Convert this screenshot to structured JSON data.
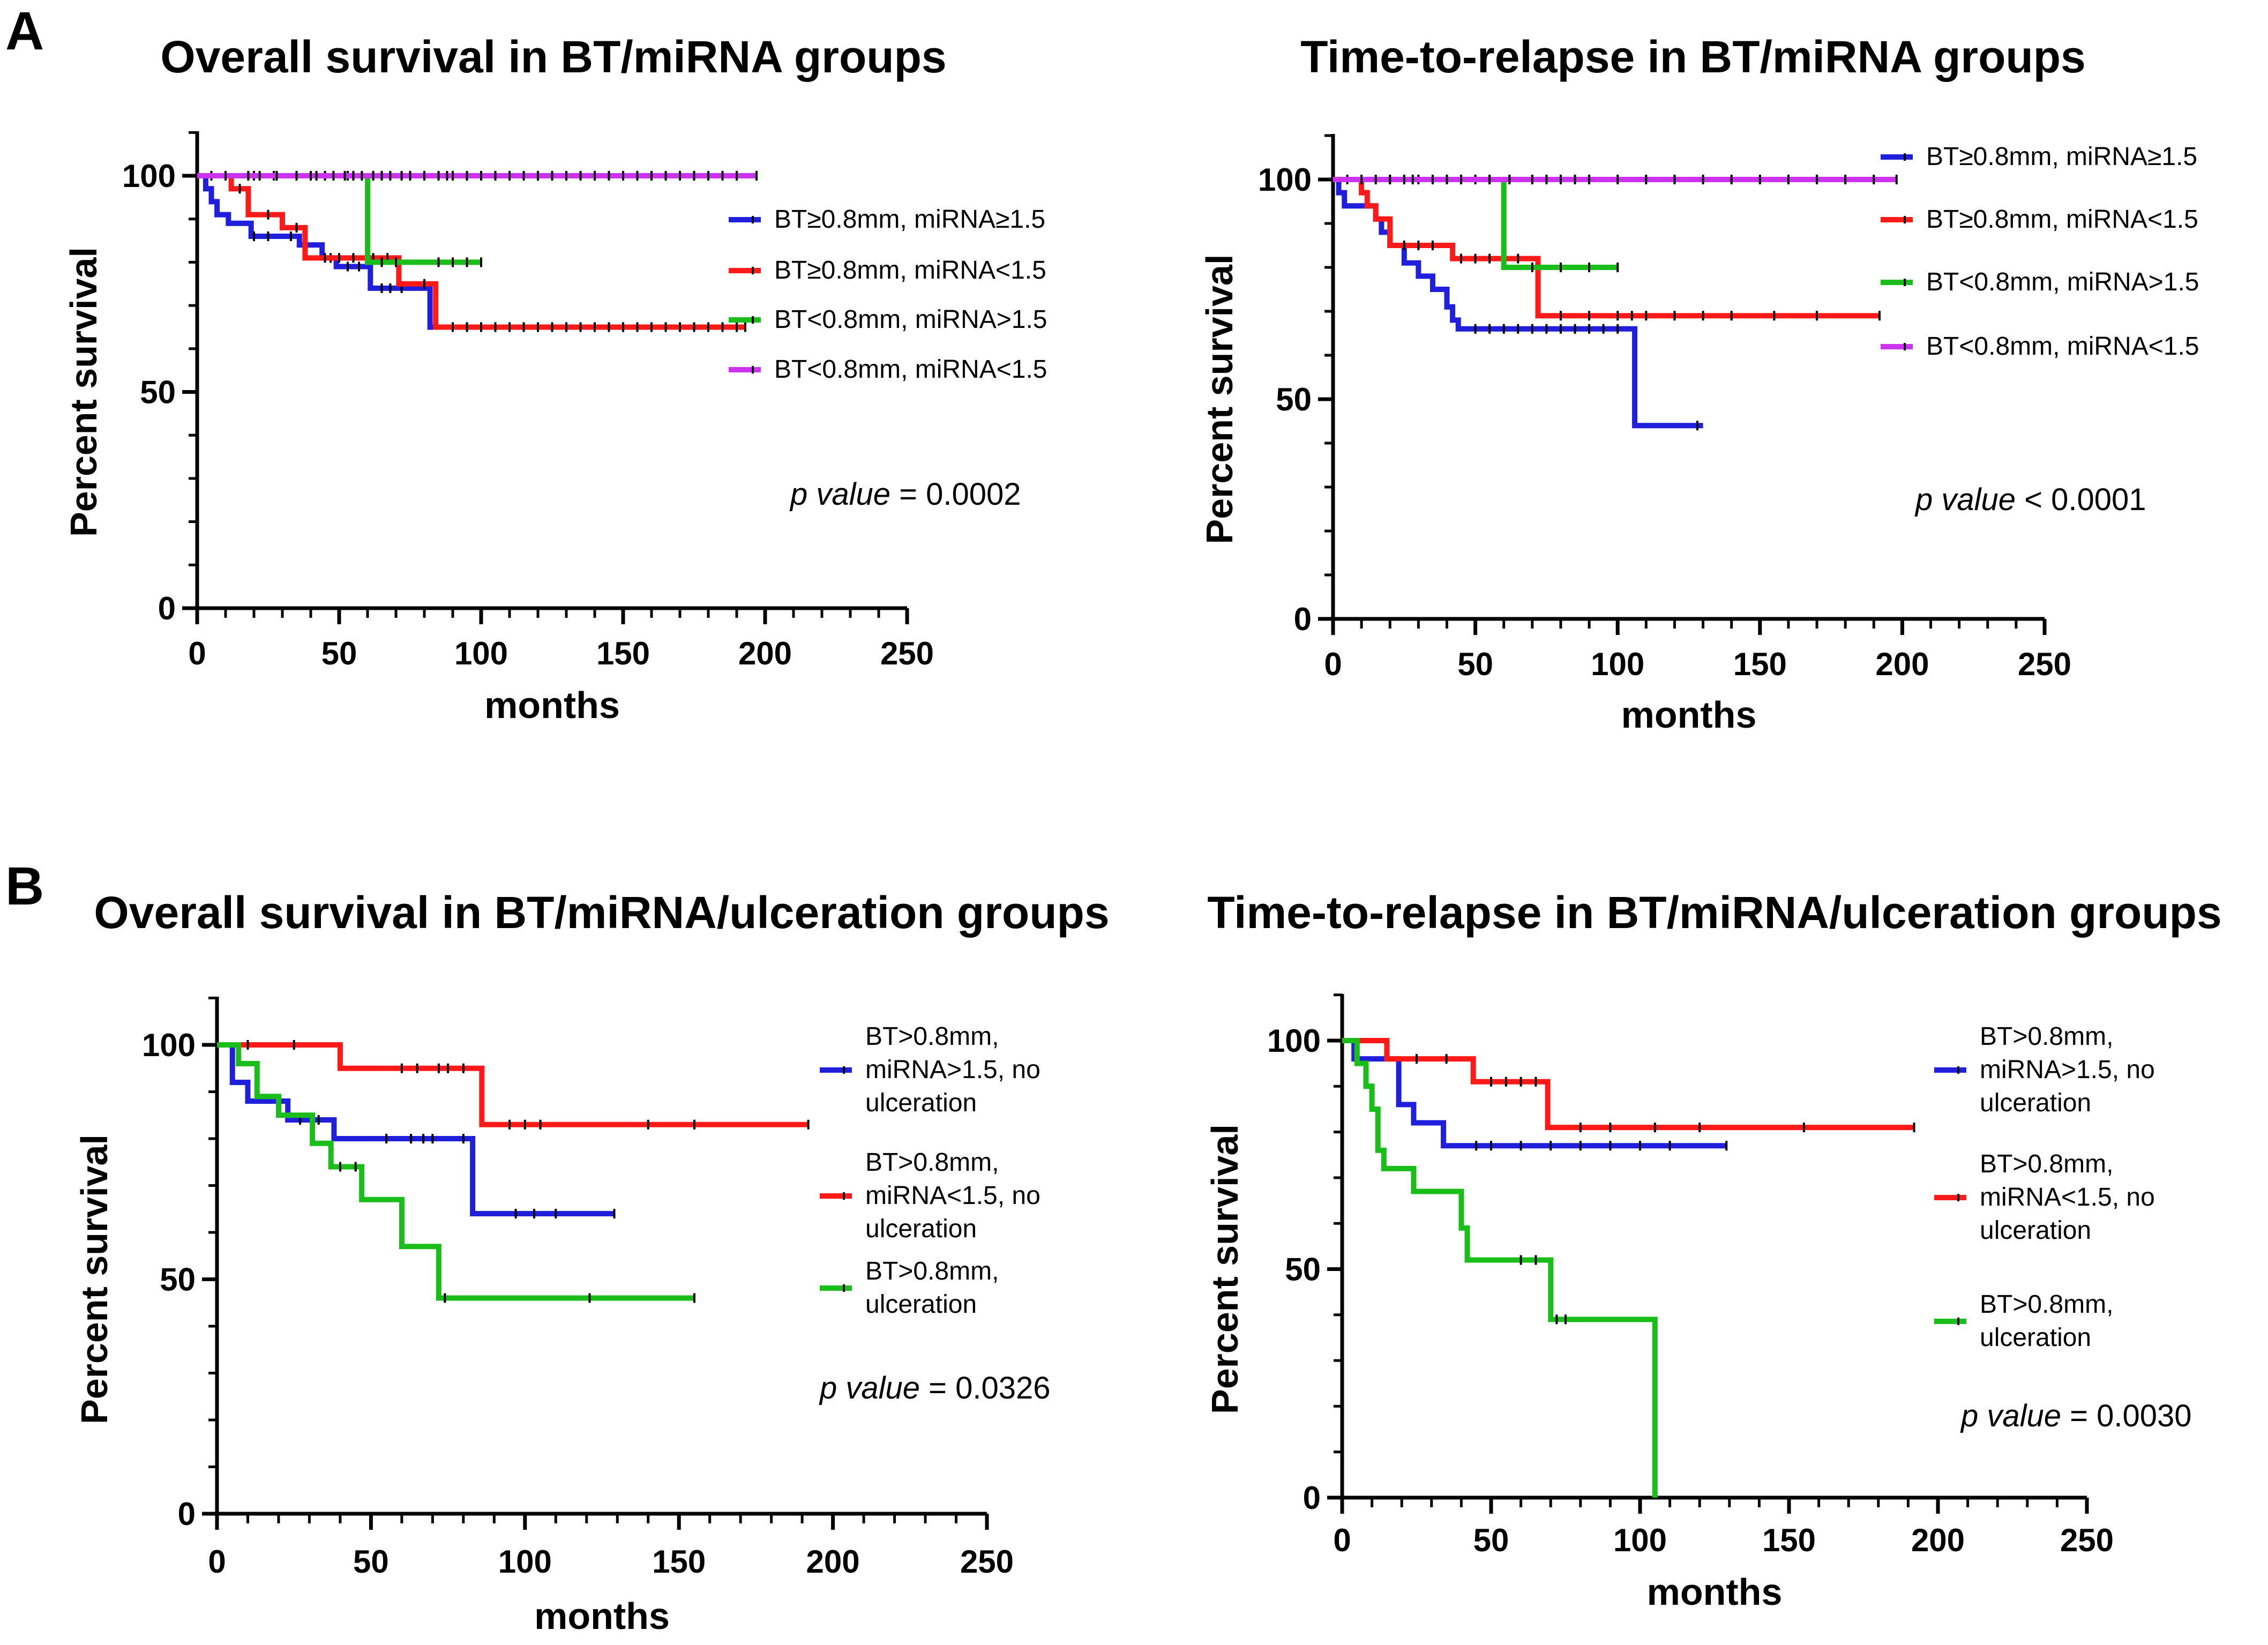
{
  "panel_labels": {
    "a": "A",
    "b": "B"
  },
  "colors": {
    "blue": "#1f1fdc",
    "red": "#ff1a1a",
    "green": "#1bbd1b",
    "magenta": "#cc33ee"
  },
  "chart_data": [
    {
      "type": "line",
      "subtype": "kaplan-meier",
      "title": "Overall survival in BT/miRNA groups",
      "xlabel": "months",
      "ylabel": "Percent survival",
      "xlim": [
        0,
        250
      ],
      "ylim": [
        0,
        110
      ],
      "xticks": [
        0,
        50,
        100,
        150,
        200,
        250
      ],
      "yticks": [
        0,
        50,
        100
      ],
      "p_label": "p value",
      "p_rest": " = 0.0002",
      "series": [
        {
          "name": "BT≥0.8mm, miRNA≥1.5",
          "color": "#1f1fdc",
          "steps": [
            [
              0,
              100
            ],
            [
              3,
              97
            ],
            [
              5,
              94
            ],
            [
              7,
              91
            ],
            [
              11,
              89
            ],
            [
              19,
              86
            ],
            [
              30,
              86
            ],
            [
              36,
              84
            ],
            [
              44,
              81
            ],
            [
              49,
              79
            ],
            [
              58,
              79
            ],
            [
              61,
              74
            ],
            [
              75,
              74
            ],
            [
              82,
              65
            ],
            [
              155,
              65
            ]
          ],
          "censors": [
            20,
            25,
            33,
            47,
            53,
            57,
            65,
            68,
            72,
            90,
            95,
            100,
            105,
            110,
            115,
            120,
            130,
            140,
            150,
            155
          ]
        },
        {
          "name": "BT≥0.8mm, miRNA<1.5",
          "color": "#ff1a1a",
          "steps": [
            [
              0,
              100
            ],
            [
              12,
              97
            ],
            [
              18,
              91
            ],
            [
              30,
              88
            ],
            [
              38,
              81
            ],
            [
              52,
              81
            ],
            [
              65,
              81
            ],
            [
              71,
              75
            ],
            [
              78,
              75
            ],
            [
              84,
              65
            ],
            [
              193,
              65
            ]
          ],
          "censors": [
            5,
            10,
            15,
            25,
            35,
            45,
            50,
            55,
            60,
            62,
            67,
            80,
            90,
            95,
            100,
            105,
            110,
            115,
            120,
            125,
            130,
            135,
            140,
            145,
            150,
            155,
            160,
            165,
            170,
            175,
            180,
            185,
            190,
            193
          ]
        },
        {
          "name": "BT<0.8mm, miRNA>1.5",
          "color": "#1bbd1b",
          "steps": [
            [
              0,
              100
            ],
            [
              59,
              100
            ],
            [
              60,
              80
            ],
            [
              100,
              80
            ]
          ],
          "censors": [
            20,
            27,
            35,
            45,
            53,
            65,
            70,
            85,
            90,
            95,
            100
          ]
        },
        {
          "name": "BT<0.8mm, miRNA<1.5",
          "color": "#cc33ee",
          "steps": [
            [
              0,
              100
            ],
            [
              197,
              100
            ]
          ],
          "censors": [
            10,
            18,
            22,
            28,
            35,
            40,
            42,
            48,
            52,
            55,
            58,
            62,
            65,
            68,
            72,
            75,
            80,
            85,
            88,
            90,
            95,
            100,
            105,
            110,
            115,
            120,
            125,
            130,
            135,
            140,
            145,
            150,
            155,
            160,
            165,
            170,
            175,
            180,
            185,
            190,
            197
          ]
        }
      ]
    },
    {
      "type": "line",
      "subtype": "kaplan-meier",
      "title": "Time-to-relapse in BT/miRNA groups",
      "xlabel": "months",
      "ylabel": "Percent survival",
      "xlim": [
        0,
        250
      ],
      "ylim": [
        0,
        110
      ],
      "xticks": [
        0,
        50,
        100,
        150,
        200,
        250
      ],
      "yticks": [
        0,
        50,
        100
      ],
      "p_label": "p value",
      "p_rest": " < 0.0001",
      "series": [
        {
          "name": "BT≥0.8mm, miRNA≥1.5",
          "color": "#1f1fdc",
          "steps": [
            [
              0,
              100
            ],
            [
              2,
              97
            ],
            [
              4,
              94
            ],
            [
              12,
              94
            ],
            [
              15,
              91
            ],
            [
              17,
              88
            ],
            [
              20,
              85
            ],
            [
              25,
              81
            ],
            [
              30,
              78
            ],
            [
              35,
              75
            ],
            [
              40,
              71
            ],
            [
              42,
              68
            ],
            [
              44,
              66
            ],
            [
              105,
              66
            ],
            [
              106,
              44
            ],
            [
              130,
              44
            ]
          ],
          "censors": [
            50,
            55,
            60,
            65,
            70,
            75,
            80,
            85,
            90,
            95,
            100,
            128
          ]
        },
        {
          "name": "BT≥0.8mm, miRNA<1.5",
          "color": "#ff1a1a",
          "steps": [
            [
              0,
              100
            ],
            [
              8,
              100
            ],
            [
              10,
              97
            ],
            [
              12,
              94
            ],
            [
              15,
              91
            ],
            [
              20,
              85
            ],
            [
              40,
              85
            ],
            [
              42,
              82
            ],
            [
              70,
              82
            ],
            [
              72,
              69
            ],
            [
              192,
              69
            ]
          ],
          "censors": [
            5,
            25,
            30,
            35,
            45,
            50,
            55,
            60,
            65,
            80,
            90,
            100,
            105,
            110,
            120,
            130,
            140,
            155,
            170,
            192
          ]
        },
        {
          "name": "BT<0.8mm, miRNA>1.5",
          "color": "#1bbd1b",
          "steps": [
            [
              0,
              100
            ],
            [
              59,
              100
            ],
            [
              60,
              80
            ],
            [
              100,
              80
            ]
          ],
          "censors": [
            20,
            30,
            40,
            50,
            70,
            80,
            90,
            100
          ]
        },
        {
          "name": "BT<0.8mm, miRNA<1.5",
          "color": "#cc33ee",
          "steps": [
            [
              0,
              100
            ],
            [
              198,
              100
            ]
          ],
          "censors": [
            10,
            15,
            20,
            25,
            28,
            35,
            40,
            45,
            55,
            62,
            70,
            75,
            80,
            85,
            90,
            100,
            110,
            120,
            130,
            140,
            150,
            160,
            170,
            180,
            190,
            198
          ]
        }
      ]
    },
    {
      "type": "line",
      "subtype": "kaplan-meier",
      "title": "Overall survival in BT/miRNA/ulceration groups",
      "xlabel": "months",
      "ylabel": "Percent survival",
      "xlim": [
        0,
        250
      ],
      "ylim": [
        0,
        110
      ],
      "xticks": [
        0,
        50,
        100,
        150,
        200,
        250
      ],
      "yticks": [
        0,
        50,
        100
      ],
      "p_label": "p value",
      "p_rest": " = 0.0326",
      "series": [
        {
          "name": "BT>0.8mm, miRNA>1.5,  no ulceration",
          "legend_lines": [
            "BT>0.8mm,",
            "miRNA>1.5,  no",
            "ulceration"
          ],
          "color": "#1f1fdc",
          "steps": [
            [
              0,
              100
            ],
            [
              5,
              92
            ],
            [
              10,
              88
            ],
            [
              20,
              88
            ],
            [
              23,
              84
            ],
            [
              37,
              84
            ],
            [
              38,
              80
            ],
            [
              82,
              80
            ],
            [
              83,
              64
            ],
            [
              129,
              64
            ]
          ],
          "censors": [
            27,
            33,
            55,
            63,
            67,
            70,
            80,
            97,
            103,
            110,
            129
          ]
        },
        {
          "name": "BT>0.8mm, miRNA<1.5,  no ulceration",
          "legend_lines": [
            "BT>0.8mm,",
            "miRNA<1.5,  no",
            "ulceration"
          ],
          "color": "#ff1a1a",
          "steps": [
            [
              0,
              100
            ],
            [
              39,
              100
            ],
            [
              40,
              95
            ],
            [
              85,
              95
            ],
            [
              86,
              83
            ],
            [
              192,
              83
            ]
          ],
          "censors": [
            10,
            25,
            60,
            65,
            72,
            75,
            80,
            95,
            100,
            105,
            140,
            155,
            192
          ]
        },
        {
          "name": "BT>0.8mm, ulceration",
          "legend_lines": [
            "BT>0.8mm,",
            "ulceration"
          ],
          "color": "#1bbd1b",
          "steps": [
            [
              0,
              100
            ],
            [
              7,
              96
            ],
            [
              13,
              89
            ],
            [
              20,
              85
            ],
            [
              31,
              79
            ],
            [
              37,
              74
            ],
            [
              47,
              67
            ],
            [
              60,
              57
            ],
            [
              71,
              57
            ],
            [
              72,
              46
            ],
            [
              155,
              46
            ]
          ],
          "censors": [
            40,
            45,
            74,
            121,
            155
          ]
        }
      ]
    },
    {
      "type": "line",
      "subtype": "kaplan-meier",
      "title": "Time-to-relapse in BT/miRNA/ulceration groups",
      "xlabel": "months",
      "ylabel": "Percent survival",
      "xlim": [
        0,
        250
      ],
      "ylim": [
        0,
        110
      ],
      "xticks": [
        0,
        50,
        100,
        150,
        200,
        250
      ],
      "yticks": [
        0,
        50,
        100
      ],
      "p_label": "p value",
      "p_rest": " = 0.0030",
      "series": [
        {
          "name": "BT>0.8mm, miRNA>1.5,  no ulceration",
          "legend_lines": [
            "BT>0.8mm,",
            "miRNA>1.5,  no",
            "ulceration"
          ],
          "color": "#1f1fdc",
          "steps": [
            [
              0,
              100
            ],
            [
              4,
              96
            ],
            [
              18,
              96
            ],
            [
              19,
              86
            ],
            [
              24,
              82
            ],
            [
              32,
              82
            ],
            [
              34,
              77
            ],
            [
              129,
              77
            ]
          ],
          "censors": [
            45,
            50,
            60,
            70,
            80,
            90,
            100,
            110,
            129
          ]
        },
        {
          "name": "BT>0.8mm, miRNA<1.5,  no ulceration",
          "legend_lines": [
            "BT>0.8mm,",
            "miRNA<1.5,  no",
            "ulceration"
          ],
          "color": "#ff1a1a",
          "steps": [
            [
              0,
              100
            ],
            [
              14,
              100
            ],
            [
              15,
              96
            ],
            [
              43,
              96
            ],
            [
              44,
              91
            ],
            [
              68,
              91
            ],
            [
              69,
              81
            ],
            [
              192,
              81
            ]
          ],
          "censors": [
            25,
            35,
            50,
            55,
            60,
            65,
            80,
            90,
            105,
            120,
            155,
            192
          ]
        },
        {
          "name": "BT>0.8mm, ulceration",
          "legend_lines": [
            "BT>0.8mm,",
            "ulceration"
          ],
          "color": "#1bbd1b",
          "steps": [
            [
              0,
              100
            ],
            [
              5,
              95
            ],
            [
              8,
              90
            ],
            [
              10,
              85
            ],
            [
              12,
              76
            ],
            [
              14,
              72
            ],
            [
              22,
              72
            ],
            [
              24,
              67
            ],
            [
              39,
              67
            ],
            [
              40,
              59
            ],
            [
              42,
              52
            ],
            [
              69,
              52
            ],
            [
              70,
              39
            ],
            [
              104,
              39
            ],
            [
              105,
              0
            ]
          ],
          "censors": [
            60,
            65,
            72,
            75
          ]
        }
      ]
    }
  ]
}
